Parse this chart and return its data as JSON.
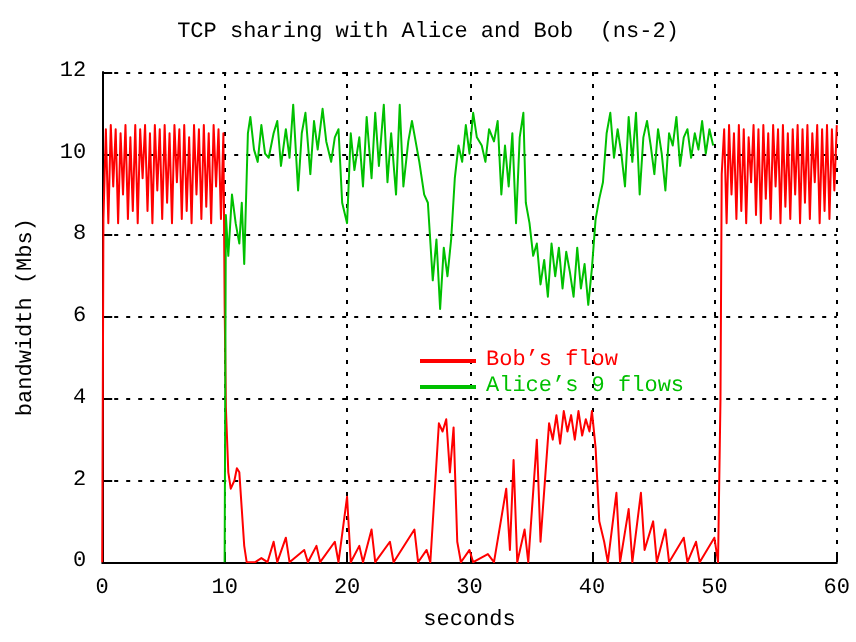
{
  "chart_data": {
    "type": "line",
    "title": "TCP sharing with Alice and Bob  (ns-2)",
    "xlabel": "seconds",
    "ylabel": "bandwidth (Mbs)",
    "xlim": [
      0,
      60
    ],
    "xticks": [
      0,
      10,
      20,
      30,
      40,
      50,
      60
    ],
    "ylim": [
      0,
      12
    ],
    "yticks": [
      0,
      2,
      4,
      6,
      8,
      10,
      12
    ],
    "grid": true,
    "legend": "center",
    "marker": "none",
    "line_style": "solid",
    "series": [
      {
        "name": "Bob’s flow",
        "color": "#ff0000",
        "x": [
          0,
          0.1,
          0.3,
          0.5,
          0.7,
          0.9,
          1.1,
          1.3,
          1.5,
          1.7,
          1.9,
          2.1,
          2.3,
          2.5,
          2.7,
          2.9,
          3.1,
          3.3,
          3.5,
          3.7,
          3.9,
          4.1,
          4.3,
          4.5,
          4.7,
          4.9,
          5.1,
          5.3,
          5.5,
          5.7,
          5.9,
          6.1,
          6.3,
          6.5,
          6.7,
          6.9,
          7.1,
          7.3,
          7.5,
          7.7,
          7.9,
          8.1,
          8.3,
          8.5,
          8.7,
          8.9,
          9.1,
          9.3,
          9.5,
          9.7,
          9.9,
          10.0,
          10.1,
          10.3,
          10.5,
          10.8,
          11.0,
          11.2,
          11.4,
          11.6,
          11.8,
          12.5,
          13,
          13.5,
          14,
          14.3,
          15,
          15.3,
          16.5,
          16.8,
          17.5,
          17.8,
          19,
          19.3,
          20,
          20.3,
          21,
          21.3,
          22,
          22.3,
          23.5,
          23.8,
          25.5,
          25.8,
          26.5,
          26.8,
          27.5,
          27.8,
          28.1,
          28.4,
          28.7,
          29,
          29.3,
          30,
          30.3,
          31.5,
          32,
          33,
          33.3,
          33.6,
          33.9,
          34.5,
          34.8,
          35.5,
          35.8,
          36.5,
          36.8,
          37.1,
          37.4,
          37.7,
          38,
          38.3,
          38.6,
          38.9,
          39.2,
          39.5,
          39.8,
          40,
          40.3,
          40.6,
          41,
          41.3,
          42,
          42.3,
          43,
          43.3,
          44,
          44.3,
          45,
          45.3,
          46,
          46.3,
          47.5,
          47.8,
          48.5,
          48.8,
          50,
          50.3,
          50.5,
          50.6,
          50.8,
          51,
          51.2,
          51.4,
          51.6,
          51.8,
          52,
          52.2,
          52.4,
          52.6,
          52.8,
          53,
          53.2,
          53.4,
          53.6,
          53.8,
          54,
          54.2,
          54.4,
          54.6,
          54.8,
          55,
          55.2,
          55.4,
          55.6,
          55.8,
          56,
          56.2,
          56.4,
          56.6,
          56.8,
          57,
          57.2,
          57.4,
          57.6,
          57.8,
          58,
          58.2,
          58.4,
          58.6,
          58.8,
          59,
          59.2,
          59.4,
          59.6,
          59.8,
          60
        ],
        "values": [
          0,
          8.4,
          10.6,
          8.3,
          10.7,
          9.2,
          10.6,
          8.3,
          10.5,
          9.0,
          10.7,
          8.4,
          10.4,
          8.6,
          10.7,
          8.3,
          10.6,
          9.4,
          10.7,
          8.6,
          10.5,
          8.3,
          10.7,
          9.1,
          10.6,
          8.4,
          10.7,
          8.8,
          10.5,
          8.3,
          10.7,
          9.3,
          10.6,
          8.4,
          10.7,
          8.6,
          10.4,
          8.3,
          10.7,
          9.0,
          10.6,
          8.4,
          10.7,
          8.7,
          10.5,
          8.3,
          10.7,
          9.2,
          10.6,
          8.4,
          10.5,
          6.3,
          3.8,
          2.2,
          1.8,
          2.0,
          2.3,
          2.2,
          1.3,
          0.4,
          0,
          0,
          0.1,
          0,
          0.5,
          0,
          0.6,
          0,
          0.3,
          0,
          0.4,
          0,
          0.5,
          0,
          1.6,
          0,
          0.4,
          0,
          0.8,
          0,
          0.5,
          0,
          0.8,
          0,
          0.3,
          0,
          3.4,
          3.2,
          3.5,
          2.2,
          3.3,
          0.5,
          0,
          0.3,
          0,
          0.2,
          0,
          1.8,
          0.3,
          2.5,
          0,
          0.8,
          0,
          3.0,
          0.5,
          3.4,
          3.0,
          3.6,
          2.9,
          3.7,
          3.2,
          3.6,
          3.0,
          3.7,
          3.1,
          3.5,
          3.2,
          3.7,
          2.8,
          1.0,
          0.5,
          0,
          1.7,
          0,
          1.3,
          0,
          1.7,
          0.3,
          1.0,
          0,
          0.8,
          0,
          0.6,
          0,
          0.5,
          0,
          0.6,
          0,
          4.0,
          9.5,
          10.6,
          8.3,
          10.7,
          9.0,
          10.5,
          8.4,
          10.7,
          8.6,
          10.6,
          8.3,
          10.4,
          9.3,
          10.7,
          8.5,
          10.6,
          8.3,
          10.7,
          8.9,
          10.5,
          8.4,
          10.7,
          9.2,
          10.6,
          8.3,
          10.7,
          8.7,
          10.5,
          8.4,
          10.6,
          9.0,
          10.7,
          8.3,
          10.6,
          8.8,
          10.7,
          8.4,
          10.5,
          9.3,
          10.7,
          8.3,
          10.6,
          8.6,
          10.7,
          8.4,
          10.6,
          9.1,
          10.7
        ]
      },
      {
        "name": "Alice’s 9 flows",
        "color": "#00c000",
        "x": [
          10,
          10.1,
          10.3,
          10.6,
          10.9,
          11.2,
          11.4,
          11.6,
          11.9,
          12.1,
          12.4,
          12.7,
          13,
          13.3,
          13.6,
          14,
          14.3,
          14.6,
          15,
          15.3,
          15.6,
          16,
          16.3,
          16.6,
          17,
          17.3,
          17.6,
          18,
          18.3,
          18.7,
          19,
          19.3,
          19.6,
          20,
          20.3,
          20.6,
          21,
          21.3,
          21.6,
          22,
          22.3,
          22.6,
          23,
          23.3,
          23.6,
          24,
          24.3,
          24.6,
          25,
          25.3,
          25.6,
          25.9,
          26.3,
          26.6,
          27,
          27.3,
          27.6,
          27.9,
          28.2,
          28.5,
          28.8,
          29.1,
          29.4,
          29.7,
          30,
          30.3,
          30.6,
          31,
          31.3,
          31.6,
          32,
          32.3,
          32.6,
          32.9,
          33.2,
          33.5,
          33.8,
          34.1,
          34.4,
          34.6,
          34.9,
          35.2,
          35.5,
          35.8,
          36.1,
          36.4,
          36.7,
          37,
          37.3,
          37.6,
          37.9,
          38.2,
          38.5,
          38.8,
          39.1,
          39.4,
          39.7,
          40,
          40.3,
          40.6,
          40.9,
          41.2,
          41.5,
          41.8,
          42.1,
          42.4,
          42.7,
          43,
          43.3,
          43.6,
          43.9,
          44.2,
          44.5,
          44.8,
          45.1,
          45.4,
          45.7,
          46,
          46.3,
          46.6,
          46.9,
          47.2,
          47.5,
          47.8,
          48.1,
          48.4,
          48.7,
          49,
          49.3,
          49.6,
          49.9
        ],
        "values": [
          0,
          8.5,
          7.5,
          9.0,
          8.3,
          7.8,
          8.8,
          7.3,
          10.5,
          10.9,
          10.1,
          9.8,
          10.7,
          10.0,
          9.9,
          10.5,
          10.8,
          9.7,
          10.6,
          9.9,
          11.2,
          9.1,
          10.5,
          11.0,
          9.5,
          10.8,
          10.1,
          11.1,
          10.3,
          9.8,
          10.4,
          10.6,
          8.8,
          8.3,
          10.5,
          9.6,
          10.4,
          9.2,
          10.9,
          9.4,
          11.0,
          9.7,
          11.2,
          9.3,
          10.5,
          9.0,
          11.2,
          9.2,
          10.3,
          10.8,
          10.3,
          9.8,
          9.0,
          8.8,
          6.9,
          7.9,
          6.2,
          7.7,
          7.0,
          7.9,
          9.4,
          10.2,
          9.8,
          10.7,
          10.0,
          11.0,
          10.4,
          10.2,
          9.8,
          10.6,
          10.3,
          10.8,
          9.0,
          10.2,
          9.2,
          10.5,
          8.3,
          10.4,
          11.0,
          8.8,
          8.3,
          7.5,
          7.8,
          6.8,
          7.4,
          6.5,
          7.8,
          7.0,
          7.7,
          6.7,
          7.6,
          7.1,
          6.5,
          7.7,
          6.7,
          7.3,
          6.3,
          7.2,
          8.4,
          8.9,
          9.3,
          10.5,
          11.0,
          9.9,
          10.6,
          10.0,
          9.2,
          10.9,
          9.8,
          11.0,
          9.0,
          10.4,
          10.8,
          10.2,
          9.5,
          10.6,
          10.0,
          9.1,
          10.5,
          10.2,
          10.9,
          9.7,
          10.4,
          10.6,
          9.9,
          10.5,
          10.1,
          10.8,
          10.0,
          10.6,
          10.2
        ]
      }
    ]
  }
}
